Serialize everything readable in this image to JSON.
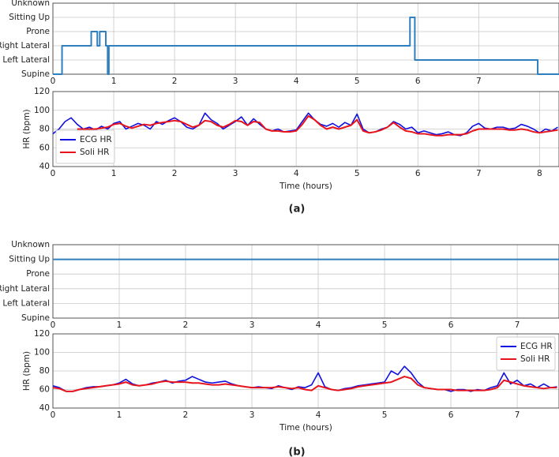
{
  "captions": [
    "(a)",
    "(b)"
  ],
  "chart_data": [
    {
      "type": "line",
      "x": [
        0,
        0.15,
        0.15,
        0.63,
        0.63,
        0.73,
        0.73,
        0.77,
        0.77,
        0.87,
        0.87,
        0.9,
        0.9,
        0.92,
        0.92,
        5.87,
        5.87,
        5.95,
        5.95,
        7.97,
        7.97,
        8.32
      ],
      "series": [
        {
          "color": "#2f7fbf",
          "values": [
            0,
            0,
            2,
            2,
            3,
            3,
            2,
            2,
            3,
            3,
            2,
            2,
            0,
            0,
            2,
            2,
            4,
            4,
            1,
            1,
            0,
            0
          ]
        }
      ],
      "xlim": [
        0,
        8.32
      ],
      "xticks": [
        0,
        1,
        2,
        3,
        4,
        5,
        6,
        7
      ],
      "ylim": [
        0,
        5
      ],
      "yticks": [
        {
          "value": 0,
          "label": "Supine"
        },
        {
          "value": 1,
          "label": "Left Lateral"
        },
        {
          "value": 2,
          "label": "Right Lateral"
        },
        {
          "value": 3,
          "label": "Prone"
        },
        {
          "value": 4,
          "label": "Sitting Up"
        },
        {
          "value": 5,
          "label": "Unknown"
        }
      ],
      "grid": true
    },
    {
      "type": "line",
      "xlabel": "Time (hours)",
      "ylabel": "HR (bpm)",
      "x": [
        0,
        0.1,
        0.2,
        0.3,
        0.4,
        0.5,
        0.6,
        0.7,
        0.8,
        0.9,
        1.0,
        1.1,
        1.2,
        1.3,
        1.4,
        1.5,
        1.6,
        1.7,
        1.8,
        1.9,
        2.0,
        2.1,
        2.2,
        2.3,
        2.4,
        2.5,
        2.6,
        2.7,
        2.8,
        2.9,
        3.0,
        3.1,
        3.2,
        3.3,
        3.4,
        3.5,
        3.6,
        3.7,
        3.8,
        3.9,
        4.0,
        4.1,
        4.2,
        4.3,
        4.4,
        4.5,
        4.6,
        4.7,
        4.8,
        4.9,
        5.0,
        5.1,
        5.2,
        5.3,
        5.4,
        5.5,
        5.6,
        5.7,
        5.8,
        5.9,
        6.0,
        6.1,
        6.2,
        6.3,
        6.4,
        6.5,
        6.6,
        6.7,
        6.8,
        6.9,
        7.0,
        7.1,
        7.2,
        7.3,
        7.4,
        7.5,
        7.6,
        7.7,
        7.8,
        7.9,
        8.0,
        8.1,
        8.2,
        8.3
      ],
      "series": [
        {
          "name": "ECG HR",
          "color": "#1010e0",
          "values": [
            75,
            80,
            88,
            92,
            85,
            80,
            82,
            79,
            83,
            80,
            86,
            88,
            80,
            83,
            86,
            84,
            80,
            88,
            85,
            89,
            92,
            88,
            82,
            80,
            84,
            97,
            90,
            86,
            80,
            84,
            88,
            93,
            84,
            91,
            85,
            80,
            78,
            80,
            77,
            78,
            79,
            88,
            97,
            90,
            85,
            83,
            86,
            82,
            87,
            84,
            96,
            80,
            76,
            77,
            80,
            82,
            88,
            85,
            80,
            82,
            76,
            78,
            76,
            74,
            75,
            77,
            74,
            73,
            76,
            83,
            86,
            81,
            80,
            82,
            82,
            80,
            81,
            85,
            83,
            80,
            76,
            80,
            78,
            82
          ]
        },
        {
          "name": "Soli HR",
          "color": "#e8141c",
          "values": [
            null,
            null,
            null,
            null,
            80,
            80,
            80,
            80,
            81,
            82,
            85,
            86,
            83,
            81,
            83,
            85,
            84,
            86,
            87,
            88,
            89,
            88,
            85,
            82,
            84,
            89,
            88,
            84,
            82,
            85,
            89,
            88,
            84,
            88,
            87,
            80,
            78,
            78,
            77,
            77,
            78,
            85,
            94,
            90,
            84,
            80,
            82,
            80,
            82,
            84,
            90,
            78,
            76,
            77,
            79,
            82,
            87,
            82,
            78,
            77,
            75,
            75,
            74,
            73,
            73,
            74,
            74,
            74,
            75,
            78,
            80,
            80,
            80,
            80,
            80,
            79,
            79,
            80,
            79,
            77,
            76,
            77,
            78,
            79
          ]
        }
      ],
      "xlim": [
        0,
        8.32
      ],
      "xticks": [
        0,
        1,
        2,
        3,
        4,
        5,
        6,
        7,
        8
      ],
      "ylim": [
        40,
        120
      ],
      "yticks": [
        40,
        60,
        80,
        100,
        120
      ],
      "grid": true,
      "legend": "lower left"
    },
    {
      "type": "line",
      "x": [
        0,
        7.63
      ],
      "series": [
        {
          "color": "#2f7fbf",
          "values": [
            4,
            4
          ]
        }
      ],
      "xlim": [
        0,
        7.63
      ],
      "xticks": [
        0,
        1,
        2,
        3,
        4,
        5,
        6,
        7
      ],
      "ylim": [
        0,
        5
      ],
      "yticks": [
        {
          "value": 0,
          "label": "Supine"
        },
        {
          "value": 1,
          "label": "Left Lateral"
        },
        {
          "value": 2,
          "label": "Right Lateral"
        },
        {
          "value": 3,
          "label": "Prone"
        },
        {
          "value": 4,
          "label": "Sitting Up"
        },
        {
          "value": 5,
          "label": "Unknown"
        }
      ],
      "grid": true
    },
    {
      "type": "line",
      "xlabel": "Time (hours)",
      "ylabel": "HR (bpm)",
      "x": [
        0,
        0.1,
        0.2,
        0.3,
        0.4,
        0.5,
        0.6,
        0.7,
        0.8,
        0.9,
        1.0,
        1.1,
        1.2,
        1.3,
        1.4,
        1.5,
        1.6,
        1.7,
        1.8,
        1.9,
        2.0,
        2.1,
        2.2,
        2.3,
        2.4,
        2.5,
        2.6,
        2.7,
        2.8,
        2.9,
        3.0,
        3.1,
        3.2,
        3.3,
        3.4,
        3.5,
        3.6,
        3.7,
        3.8,
        3.9,
        4.0,
        4.1,
        4.2,
        4.3,
        4.4,
        4.5,
        4.6,
        4.7,
        4.8,
        4.9,
        5.0,
        5.1,
        5.2,
        5.3,
        5.4,
        5.5,
        5.6,
        5.7,
        5.8,
        5.9,
        6.0,
        6.1,
        6.2,
        6.3,
        6.4,
        6.5,
        6.6,
        6.7,
        6.8,
        6.9,
        7.0,
        7.1,
        7.2,
        7.3,
        7.4,
        7.5,
        7.6
      ],
      "series": [
        {
          "name": "ECG HR",
          "color": "#1010e0",
          "values": [
            64,
            62,
            58,
            58,
            60,
            62,
            63,
            63,
            64,
            65,
            67,
            71,
            66,
            64,
            65,
            67,
            68,
            70,
            67,
            69,
            70,
            74,
            71,
            68,
            67,
            68,
            69,
            66,
            64,
            63,
            62,
            63,
            62,
            61,
            64,
            62,
            60,
            63,
            62,
            65,
            78,
            63,
            60,
            59,
            61,
            62,
            64,
            65,
            66,
            67,
            68,
            80,
            76,
            85,
            78,
            68,
            62,
            61,
            60,
            60,
            58,
            60,
            60,
            58,
            60,
            59,
            62,
            64,
            78,
            66,
            70,
            64,
            66,
            62,
            66,
            62,
            63
          ]
        },
        {
          "name": "Soli HR",
          "color": "#e8141c",
          "values": [
            62,
            61,
            58,
            58,
            60,
            61,
            62,
            63,
            64,
            65,
            66,
            68,
            65,
            64,
            65,
            66,
            68,
            69,
            68,
            68,
            68,
            67,
            67,
            66,
            65,
            65,
            66,
            65,
            64,
            63,
            62,
            62,
            62,
            62,
            63,
            62,
            61,
            62,
            60,
            59,
            64,
            62,
            60,
            59,
            60,
            61,
            63,
            64,
            65,
            66,
            67,
            68,
            71,
            74,
            72,
            65,
            62,
            61,
            60,
            60,
            60,
            59,
            59,
            59,
            59,
            59,
            60,
            62,
            70,
            68,
            66,
            64,
            63,
            62,
            61,
            62,
            62
          ]
        }
      ],
      "xlim": [
        0,
        7.63
      ],
      "xticks": [
        0,
        1,
        2,
        3,
        4,
        5,
        6,
        7
      ],
      "ylim": [
        40,
        120
      ],
      "yticks": [
        40,
        60,
        80,
        100,
        120
      ],
      "grid": true,
      "legend": "upper right"
    }
  ]
}
